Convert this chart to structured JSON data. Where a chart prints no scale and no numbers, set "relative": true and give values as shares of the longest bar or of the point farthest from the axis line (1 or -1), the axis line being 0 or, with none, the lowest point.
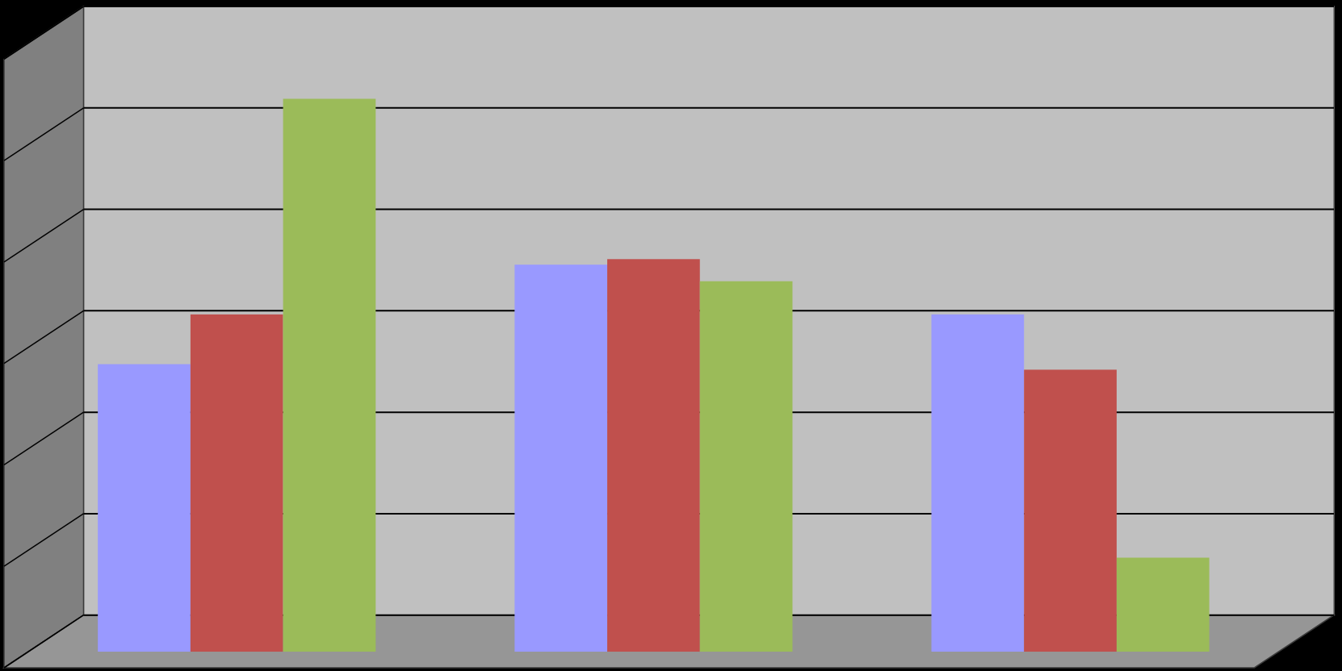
{
  "chart_data": {
    "type": "bar",
    "relative": true,
    "categories": [
      null,
      null,
      null
    ],
    "series": [
      {
        "color": "#9999ff",
        "values": [
          0.52,
          0.7,
          0.61
        ]
      },
      {
        "color": "#c0504d",
        "values": [
          0.61,
          0.71,
          0.51
        ]
      },
      {
        "color": "#9bbb59",
        "values": [
          1,
          0.67,
          0.17
        ]
      }
    ],
    "grid": true
  }
}
